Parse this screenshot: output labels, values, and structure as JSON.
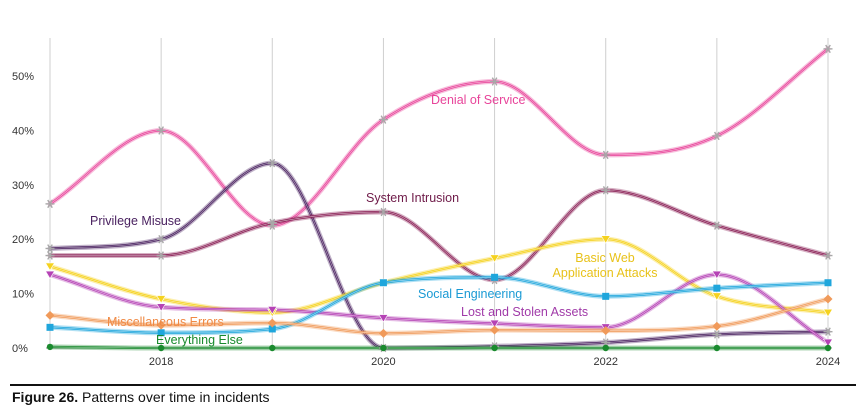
{
  "caption": {
    "figure_label": "Figure 26.",
    "text": "Patterns over time in incidents"
  },
  "chart_data": {
    "type": "line",
    "title": "",
    "xlabel": "",
    "ylabel": "",
    "x": [
      2017,
      2018,
      2019,
      2020,
      2021,
      2022,
      2023,
      2024
    ],
    "xticks": [
      2018,
      2020,
      2022,
      2024
    ],
    "xtick_labels": [
      "2018",
      "2020",
      "2022",
      "2024"
    ],
    "xlim": [
      2017,
      2024
    ],
    "ylim": [
      0,
      57
    ],
    "yticks": [
      0,
      10,
      20,
      30,
      40,
      50
    ],
    "ytick_labels": [
      "0%",
      "10%",
      "20%",
      "30%",
      "40%",
      "50%"
    ],
    "grid": "vertical",
    "legend": "none (direct labels)",
    "series": [
      {
        "name": "Denial of Service",
        "color": "#e8449a",
        "marker": "asterisk",
        "values": [
          26.5,
          40,
          22.5,
          42,
          49,
          35.5,
          39,
          55
        ]
      },
      {
        "name": "Privilege Misuse",
        "color": "#4a2260",
        "marker": "asterisk",
        "values": [
          18.3,
          20,
          34,
          0,
          0.3,
          1,
          2.5,
          3
        ]
      },
      {
        "name": "System Intrusion",
        "color": "#8a1f55",
        "marker": "asterisk",
        "values": [
          17,
          17,
          23,
          25,
          12.5,
          29,
          22.5,
          17
        ]
      },
      {
        "name": "Basic Web Application Attacks",
        "color": "#f5d21e",
        "marker": "triangle",
        "values": [
          15,
          9,
          6.5,
          12,
          16.5,
          20,
          9.5,
          6.5
        ]
      },
      {
        "name": "Lost and Stolen Assets",
        "color": "#b542b5",
        "marker": "triangle",
        "values": [
          13.5,
          7.5,
          7,
          5.5,
          4.5,
          3.8,
          13.5,
          1
        ]
      },
      {
        "name": "Social Engineering",
        "color": "#1fa6dc",
        "marker": "square",
        "values": [
          3.8,
          2.8,
          3.5,
          12,
          13,
          9.5,
          11,
          12
        ]
      },
      {
        "name": "Miscellaneous Errors",
        "color": "#f09a5a",
        "marker": "diamond",
        "values": [
          6,
          4.2,
          4.6,
          2.7,
          3.3,
          3.2,
          4,
          9
        ]
      },
      {
        "name": "Everything Else",
        "color": "#1a8a2e",
        "marker": "circle",
        "values": [
          0.2,
          0,
          0,
          0,
          0,
          0,
          0,
          0
        ]
      }
    ],
    "labels": [
      {
        "text": "Denial of Service",
        "color": "#e8449a"
      },
      {
        "text": "Privilege Misuse",
        "color": "#4a2260"
      },
      {
        "text": "System Intrusion",
        "color": "#6e1a48"
      },
      {
        "text": "Basic Web",
        "color": "#e8c21a"
      },
      {
        "text": "Application Attacks",
        "color": "#e8c21a"
      },
      {
        "text": "Social Engineering",
        "color": "#1a9ad4"
      },
      {
        "text": "Lost and Stolen Assets",
        "color": "#a03aa8"
      },
      {
        "text": "Miscellaneous Errors",
        "color": "#f08a45"
      },
      {
        "text": "Everything Else",
        "color": "#178a2c"
      }
    ]
  }
}
